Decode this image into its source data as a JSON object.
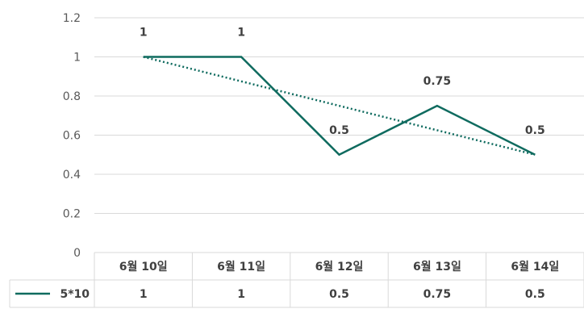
{
  "chart_data": {
    "type": "line",
    "categories": [
      "6월 10일",
      "6월 11일",
      "6월 12일",
      "6월 13일",
      "6월 14일"
    ],
    "series": [
      {
        "name": "5*10",
        "values": [
          1,
          1,
          0.5,
          0.75,
          0.5
        ],
        "data_labels": [
          "1",
          "1",
          "0.5",
          "0.75",
          "0.5"
        ],
        "color": "#0f6b5f",
        "trendline": "linear"
      }
    ],
    "y_ticks": [
      "0",
      "0.2",
      "0.4",
      "0.6",
      "0.8",
      "1",
      "1.2"
    ],
    "ylim": [
      0,
      1.2
    ],
    "grid": true,
    "legend": "data-table",
    "data_table": true,
    "grid_color": "#d9d9d9"
  }
}
